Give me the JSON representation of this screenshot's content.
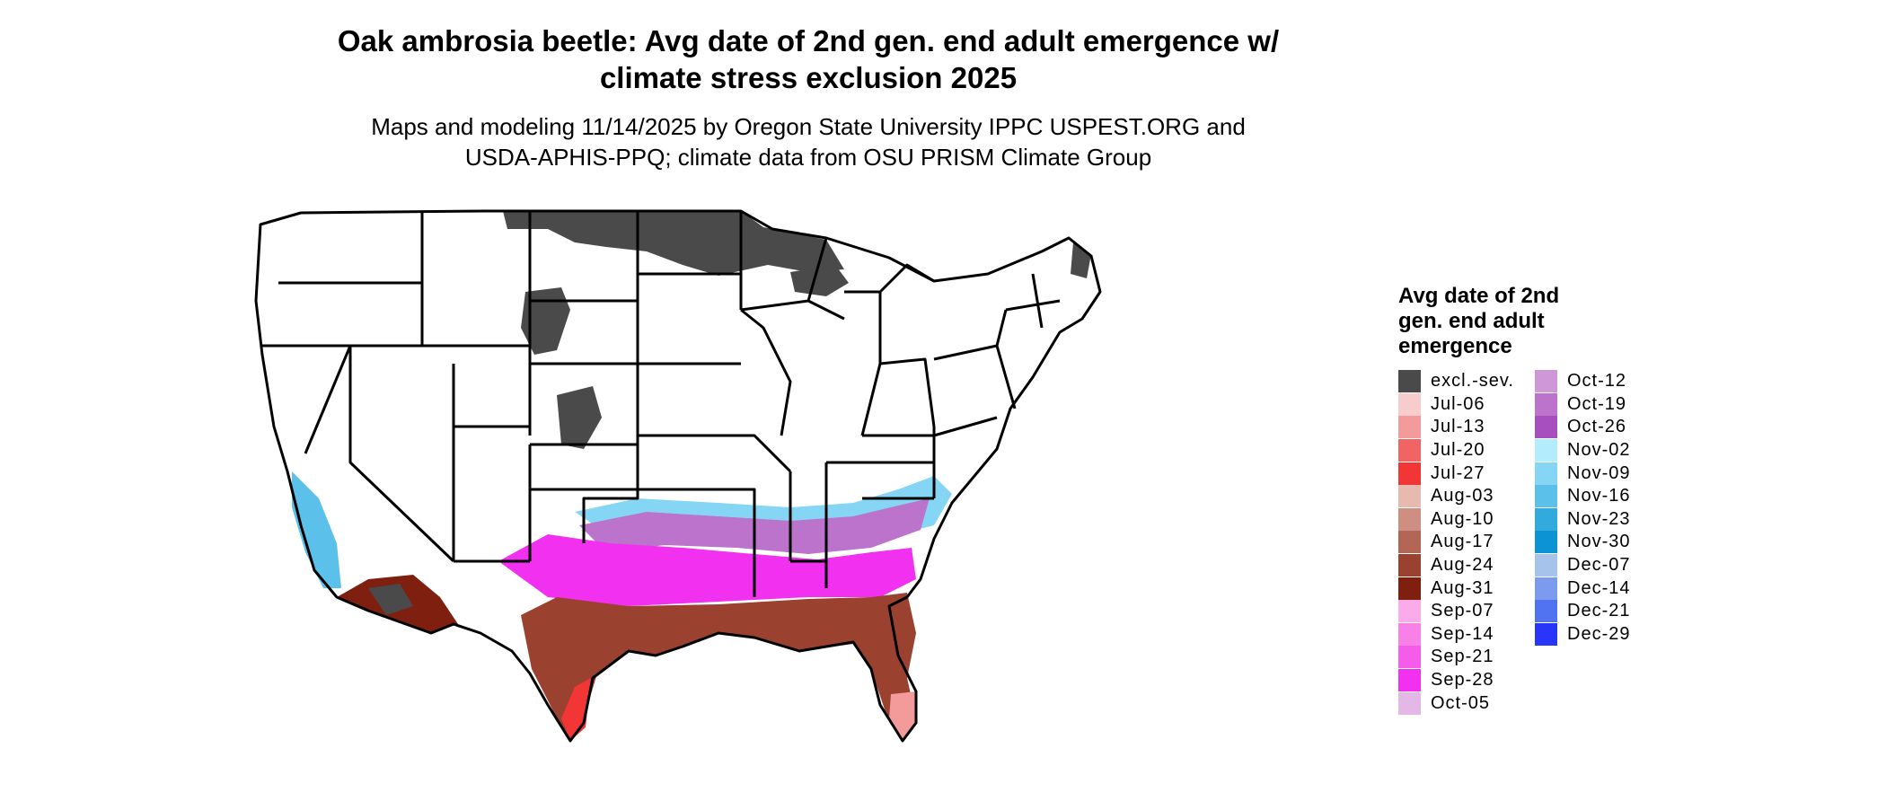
{
  "title": {
    "line1": "Oak ambrosia beetle: Avg date of 2nd gen. end adult emergence w/",
    "line2": "climate stress exclusion 2025"
  },
  "subtitle": {
    "line1": "Maps and modeling 11/14/2025 by Oregon State University IPPC USPEST.ORG and",
    "line2": "USDA-APHIS-PPQ; climate data from OSU PRISM Climate Group"
  },
  "legend": {
    "title_lines": [
      "Avg date of 2nd",
      "gen. end adult",
      "emergence"
    ],
    "items": [
      {
        "label": "excl.-sev.",
        "color": "#4a4a4a"
      },
      {
        "label": "Jul-06",
        "color": "#f6cccc"
      },
      {
        "label": "Jul-13",
        "color": "#f39a9a"
      },
      {
        "label": "Jul-20",
        "color": "#f16464"
      },
      {
        "label": "Jul-27",
        "color": "#f23535"
      },
      {
        "label": "Aug-03",
        "color": "#e8b9ae"
      },
      {
        "label": "Aug-10",
        "color": "#cf8e82"
      },
      {
        "label": "Aug-17",
        "color": "#b46656"
      },
      {
        "label": "Aug-24",
        "color": "#9a4130"
      },
      {
        "label": "Aug-31",
        "color": "#7f1f10"
      },
      {
        "label": "Sep-07",
        "color": "#fbabe9"
      },
      {
        "label": "Sep-14",
        "color": "#f881e8"
      },
      {
        "label": "Sep-21",
        "color": "#f55ce9"
      },
      {
        "label": "Sep-28",
        "color": "#f131ef"
      },
      {
        "label": "Oct-05",
        "color": "#e3b8e6"
      },
      {
        "label": "Oct-12",
        "color": "#cf96d8"
      },
      {
        "label": "Oct-19",
        "color": "#bc73cc"
      },
      {
        "label": "Oct-26",
        "color": "#a84fbf"
      },
      {
        "label": "Nov-02",
        "color": "#b3ecfd"
      },
      {
        "label": "Nov-09",
        "color": "#85d6f5"
      },
      {
        "label": "Nov-16",
        "color": "#5bc0ea"
      },
      {
        "label": "Nov-23",
        "color": "#32aade"
      },
      {
        "label": "Nov-30",
        "color": "#0c93d4"
      },
      {
        "label": "Dec-07",
        "color": "#a5c3eb"
      },
      {
        "label": "Dec-14",
        "color": "#7d9bee"
      },
      {
        "label": "Dec-21",
        "color": "#5273f1"
      },
      {
        "label": "Dec-29",
        "color": "#2a35fa"
      }
    ]
  },
  "map": {
    "region": "Contiguous United States",
    "state_boundary_color": "#000000"
  }
}
